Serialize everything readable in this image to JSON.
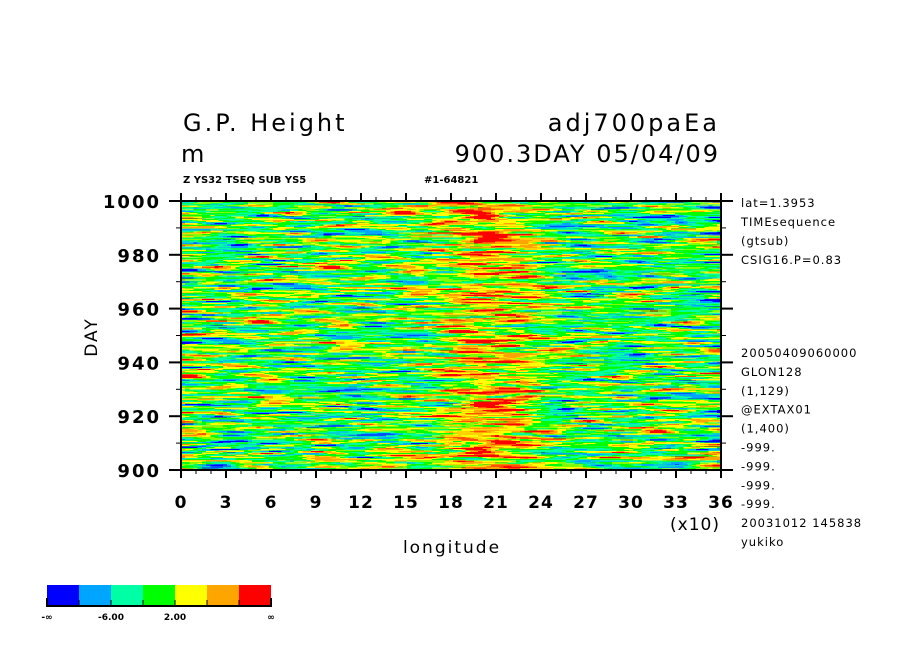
{
  "header": {
    "title": "G.P. Height",
    "unit": "m",
    "dataset": "adj700paEa",
    "time_label": "900.3DAY 05/04/09",
    "subtitle": "Z YS32 TSEQ SUB YS5",
    "file_id": "#1-64821"
  },
  "info_lines_top": [
    "lat=1.3953",
    "TIMEsequence",
    "(gtsub)",
    "CSIG16.P=0.83"
  ],
  "info_lines_bottom": [
    "20050409060000",
    "GLON128",
    "(1,129)",
    "@EXTAX01",
    "(1,400)",
    "-999.",
    "-999.",
    "-999.",
    "-999.",
    "20031012 145838",
    "yukiko"
  ],
  "chart_data": {
    "type": "heatmap",
    "xlabel": "longitude",
    "x_scale_label": "(x10)",
    "ylabel": "DAY",
    "xlim": [
      0,
      36
    ],
    "ylim": [
      900,
      1000
    ],
    "x_ticks": [
      "0",
      "3",
      "6",
      "9",
      "12",
      "15",
      "18",
      "21",
      "24",
      "27",
      "30",
      "33",
      "36"
    ],
    "y_ticks": [
      "900",
      "920",
      "940",
      "960",
      "980",
      "1000"
    ],
    "grid_size": {
      "longitude_points": 129,
      "time_points": 400
    },
    "colors": [
      "#0000ff",
      "#00a5ff",
      "#00ffa5",
      "#00ff00",
      "#ffff00",
      "#ffa500",
      "#ff0000"
    ],
    "colorbar_labels": [
      "-∞",
      "-6.00",
      "2.00",
      "∞"
    ],
    "features": "zonally elongated noisy field; band of high values (yellow/orange/red) between longitude 17 and 25 (x10)"
  }
}
